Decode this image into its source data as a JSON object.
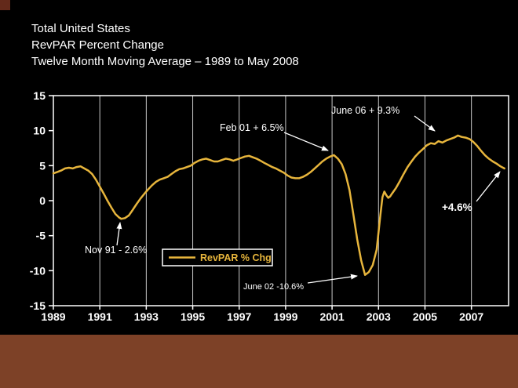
{
  "slide": {
    "title_lines": [
      "Total United States",
      "RevPAR Percent Change",
      "Twelve Month Moving Average – 1989 to May 2008"
    ],
    "colors": {
      "background": "#000000",
      "band": "#7d4127",
      "corner": "#63291a",
      "line": "#e7b53c",
      "text": "#ffffff"
    }
  },
  "chart_data": {
    "type": "line",
    "title": "",
    "xlabel": "",
    "ylabel": "",
    "x_range": [
      1989,
      2008.6
    ],
    "y_range": [
      -15,
      15
    ],
    "x_ticks": [
      1989,
      1991,
      1993,
      1995,
      1997,
      1999,
      2001,
      2003,
      2005,
      2007
    ],
    "y_ticks": [
      15,
      10,
      5,
      0,
      -5,
      -10,
      -15
    ],
    "grid": "vertical-only",
    "legend": {
      "label": "RevPAR % Chg",
      "position": "bottom-center-inside"
    },
    "series": [
      {
        "name": "RevPAR % Chg",
        "points": [
          [
            1989.0,
            3.9
          ],
          [
            1989.17,
            4.1
          ],
          [
            1989.33,
            4.3
          ],
          [
            1989.5,
            4.6
          ],
          [
            1989.67,
            4.7
          ],
          [
            1989.83,
            4.6
          ],
          [
            1990.0,
            4.8
          ],
          [
            1990.17,
            4.9
          ],
          [
            1990.33,
            4.6
          ],
          [
            1990.5,
            4.3
          ],
          [
            1990.67,
            3.8
          ],
          [
            1990.83,
            3.0
          ],
          [
            1991.0,
            2.0
          ],
          [
            1991.17,
            1.0
          ],
          [
            1991.33,
            0.0
          ],
          [
            1991.5,
            -1.0
          ],
          [
            1991.67,
            -1.9
          ],
          [
            1991.83,
            -2.4
          ],
          [
            1991.92,
            -2.6
          ],
          [
            1992.08,
            -2.5
          ],
          [
            1992.25,
            -2.1
          ],
          [
            1992.42,
            -1.3
          ],
          [
            1992.58,
            -0.5
          ],
          [
            1992.75,
            0.3
          ],
          [
            1992.92,
            1.0
          ],
          [
            1993.08,
            1.6
          ],
          [
            1993.25,
            2.2
          ],
          [
            1993.42,
            2.7
          ],
          [
            1993.58,
            3.0
          ],
          [
            1993.75,
            3.2
          ],
          [
            1993.92,
            3.4
          ],
          [
            1994.08,
            3.8
          ],
          [
            1994.25,
            4.2
          ],
          [
            1994.42,
            4.5
          ],
          [
            1994.58,
            4.6
          ],
          [
            1994.75,
            4.8
          ],
          [
            1994.92,
            5.0
          ],
          [
            1995.08,
            5.4
          ],
          [
            1995.25,
            5.7
          ],
          [
            1995.42,
            5.9
          ],
          [
            1995.58,
            6.0
          ],
          [
            1995.75,
            5.8
          ],
          [
            1995.92,
            5.6
          ],
          [
            1996.08,
            5.6
          ],
          [
            1996.25,
            5.8
          ],
          [
            1996.42,
            6.0
          ],
          [
            1996.58,
            5.9
          ],
          [
            1996.75,
            5.7
          ],
          [
            1996.92,
            5.9
          ],
          [
            1997.08,
            6.1
          ],
          [
            1997.25,
            6.3
          ],
          [
            1997.42,
            6.4
          ],
          [
            1997.58,
            6.2
          ],
          [
            1997.75,
            6.0
          ],
          [
            1997.92,
            5.7
          ],
          [
            1998.08,
            5.4
          ],
          [
            1998.25,
            5.1
          ],
          [
            1998.42,
            4.8
          ],
          [
            1998.58,
            4.6
          ],
          [
            1998.75,
            4.3
          ],
          [
            1998.92,
            4.0
          ],
          [
            1999.08,
            3.6
          ],
          [
            1999.25,
            3.3
          ],
          [
            1999.42,
            3.2
          ],
          [
            1999.58,
            3.2
          ],
          [
            1999.75,
            3.4
          ],
          [
            1999.92,
            3.7
          ],
          [
            2000.08,
            4.1
          ],
          [
            2000.25,
            4.6
          ],
          [
            2000.42,
            5.1
          ],
          [
            2000.58,
            5.6
          ],
          [
            2000.75,
            6.0
          ],
          [
            2000.92,
            6.3
          ],
          [
            2001.08,
            6.5
          ],
          [
            2001.25,
            6.0
          ],
          [
            2001.42,
            5.2
          ],
          [
            2001.58,
            3.8
          ],
          [
            2001.75,
            1.5
          ],
          [
            2001.92,
            -2.0
          ],
          [
            2002.08,
            -5.5
          ],
          [
            2002.25,
            -8.5
          ],
          [
            2002.42,
            -10.6
          ],
          [
            2002.58,
            -10.2
          ],
          [
            2002.75,
            -9.2
          ],
          [
            2002.92,
            -7.0
          ],
          [
            2003.0,
            -4.5
          ],
          [
            2003.08,
            -2.0
          ],
          [
            2003.17,
            0.5
          ],
          [
            2003.25,
            1.3
          ],
          [
            2003.33,
            0.8
          ],
          [
            2003.42,
            0.4
          ],
          [
            2003.5,
            0.6
          ],
          [
            2003.58,
            1.0
          ],
          [
            2003.75,
            1.8
          ],
          [
            2003.92,
            2.8
          ],
          [
            2004.08,
            3.8
          ],
          [
            2004.25,
            4.8
          ],
          [
            2004.42,
            5.6
          ],
          [
            2004.58,
            6.3
          ],
          [
            2004.75,
            6.9
          ],
          [
            2004.92,
            7.4
          ],
          [
            2005.08,
            7.9
          ],
          [
            2005.25,
            8.2
          ],
          [
            2005.42,
            8.1
          ],
          [
            2005.58,
            8.5
          ],
          [
            2005.75,
            8.3
          ],
          [
            2005.92,
            8.6
          ],
          [
            2006.08,
            8.8
          ],
          [
            2006.25,
            9.0
          ],
          [
            2006.42,
            9.3
          ],
          [
            2006.58,
            9.1
          ],
          [
            2006.75,
            9.0
          ],
          [
            2006.92,
            8.8
          ],
          [
            2007.08,
            8.4
          ],
          [
            2007.25,
            7.8
          ],
          [
            2007.42,
            7.1
          ],
          [
            2007.58,
            6.5
          ],
          [
            2007.75,
            6.0
          ],
          [
            2007.92,
            5.6
          ],
          [
            2008.08,
            5.3
          ],
          [
            2008.25,
            4.9
          ],
          [
            2008.42,
            4.6
          ]
        ]
      }
    ],
    "annotations": [
      {
        "label": "Nov 91 - 2.6%",
        "x": 1991.92,
        "y": -2.6
      },
      {
        "label": "Feb 01 + 6.5%",
        "x": 2001.08,
        "y": 6.5
      },
      {
        "label": "June 06 + 9.3%",
        "x": 2006.42,
        "y": 9.3
      },
      {
        "label": "June 02 -10.6%",
        "x": 2002.42,
        "y": -10.6
      },
      {
        "label": "+4.6%",
        "x": 2008.42,
        "y": 4.6
      }
    ]
  }
}
